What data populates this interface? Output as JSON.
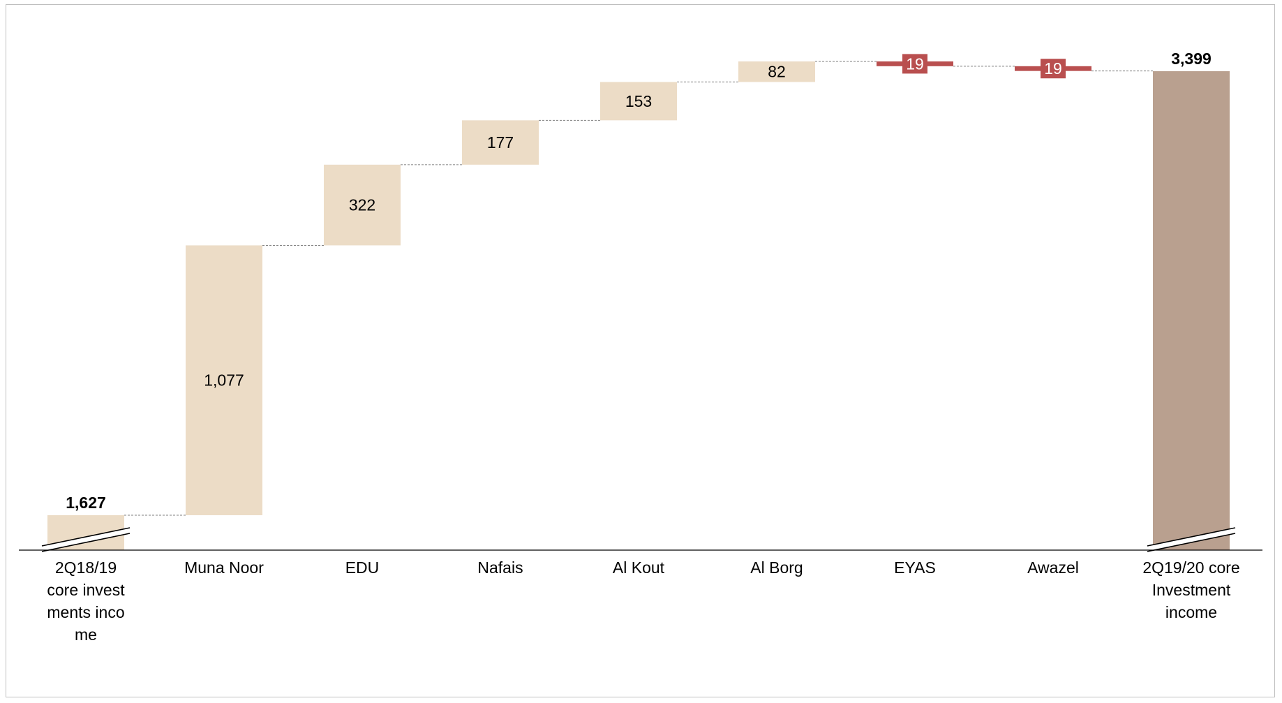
{
  "chart_data": {
    "type": "waterfall",
    "title": "",
    "xlabel": "",
    "ylabel": "",
    "categories": [
      "2Q18/19 core investments income",
      "Muna Noor",
      "EDU",
      "Nafais",
      "Al Kout",
      "Al Borg",
      "EYAS",
      "Awazel",
      "2Q19/20 core Investment income"
    ],
    "category_lines": [
      [
        "2Q18/19",
        "core invest",
        "ments inco",
        "me"
      ],
      [
        "Muna Noor"
      ],
      [
        "EDU"
      ],
      [
        "Nafais"
      ],
      [
        "Al Kout"
      ],
      [
        "Al Borg"
      ],
      [
        "EYAS"
      ],
      [
        "Awazel"
      ],
      [
        "2Q19/20 core",
        "Investment",
        "income"
      ]
    ],
    "values": [
      1627,
      1077,
      322,
      177,
      153,
      82,
      -19,
      -19,
      3399
    ],
    "kinds": [
      "total",
      "increase",
      "increase",
      "increase",
      "increase",
      "increase",
      "decrease",
      "decrease",
      "total"
    ],
    "labels": [
      "1,627",
      "1,077",
      "322",
      "177",
      "153",
      "82",
      "19",
      "19",
      "3,399"
    ],
    "axis_break": true,
    "colors": {
      "start_total": "#ecdcc6",
      "increase": "#ecdcc6",
      "decrease": "#b94f4f",
      "end_total": "#b9a08f",
      "connector": "#7f7f7f",
      "axis": "#000000"
    }
  }
}
